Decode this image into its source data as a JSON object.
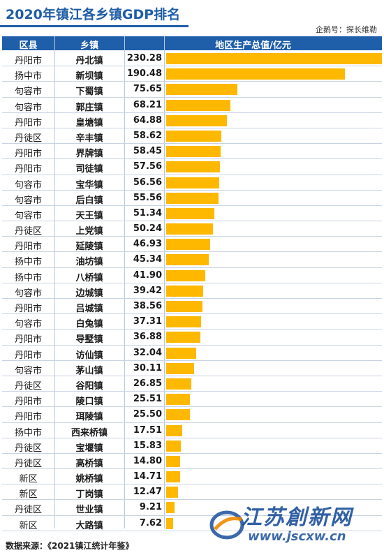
{
  "title": "2020年镇江各乡镇GDP排名",
  "note": "企鹅号：探长维勒",
  "headers": {
    "county": "区县",
    "town": "乡镇",
    "gdp": "地区生产总值/亿元"
  },
  "footer": "数据来源：《2021镇江统计年鉴》",
  "watermark": {
    "text": "江苏創新网",
    "url": "www.jscxw.cn"
  },
  "colors": {
    "bar": "#ffb800",
    "header": "#1f5ea8"
  },
  "chart_data": {
    "type": "bar",
    "title": "2020年镇江各乡镇GDP排名",
    "xlabel": "乡镇",
    "ylabel": "地区生产总值/亿元",
    "ylim": [
      0,
      230.28
    ],
    "categories": [
      "丹北镇",
      "新坝镇",
      "下蜀镇",
      "郭庄镇",
      "皇塘镇",
      "辛丰镇",
      "界牌镇",
      "司徒镇",
      "宝华镇",
      "后白镇",
      "天王镇",
      "上党镇",
      "延陵镇",
      "油坊镇",
      "八桥镇",
      "边城镇",
      "吕城镇",
      "白兔镇",
      "导墅镇",
      "访仙镇",
      "茅山镇",
      "谷阳镇",
      "陵口镇",
      "珥陵镇",
      "西来桥镇",
      "宝堰镇",
      "高桥镇",
      "姚桥镇",
      "丁岗镇",
      "世业镇",
      "大路镇"
    ],
    "counties": [
      "丹阳市",
      "扬中市",
      "句容市",
      "句容市",
      "丹阳市",
      "丹徒区",
      "丹阳市",
      "丹阳市",
      "句容市",
      "句容市",
      "句容市",
      "丹徒区",
      "丹阳市",
      "扬中市",
      "扬中市",
      "句容市",
      "丹阳市",
      "句容市",
      "丹阳市",
      "丹阳市",
      "句容市",
      "丹徒区",
      "丹阳市",
      "丹阳市",
      "扬中市",
      "丹徒区",
      "丹徒区",
      "新区",
      "新区",
      "丹徒区",
      "新区"
    ],
    "values": [
      230.28,
      190.48,
      75.65,
      68.21,
      64.88,
      58.62,
      58.45,
      57.56,
      56.56,
      55.56,
      51.34,
      50.24,
      46.93,
      45.34,
      41.9,
      39.42,
      38.56,
      37.31,
      36.88,
      32.04,
      30.11,
      26.85,
      25.51,
      25.5,
      17.51,
      15.83,
      14.8,
      14.71,
      12.47,
      9.21,
      7.62
    ],
    "value_labels": [
      "230.28",
      "190.48",
      "75.65",
      "68.21",
      "64.88",
      "58.62",
      "58.45",
      "57.56",
      "56.56",
      "55.56",
      "51.34",
      "50.24",
      "46.93",
      "45.34",
      "41.90",
      "39.42",
      "38.56",
      "37.31",
      "36.88",
      "32.04",
      "30.11",
      "26.85",
      "25.51",
      "25.50",
      "17.51",
      "15.83",
      "14.80",
      "14.71",
      "12.47",
      "9.21",
      "7.62"
    ],
    "grid": false
  }
}
